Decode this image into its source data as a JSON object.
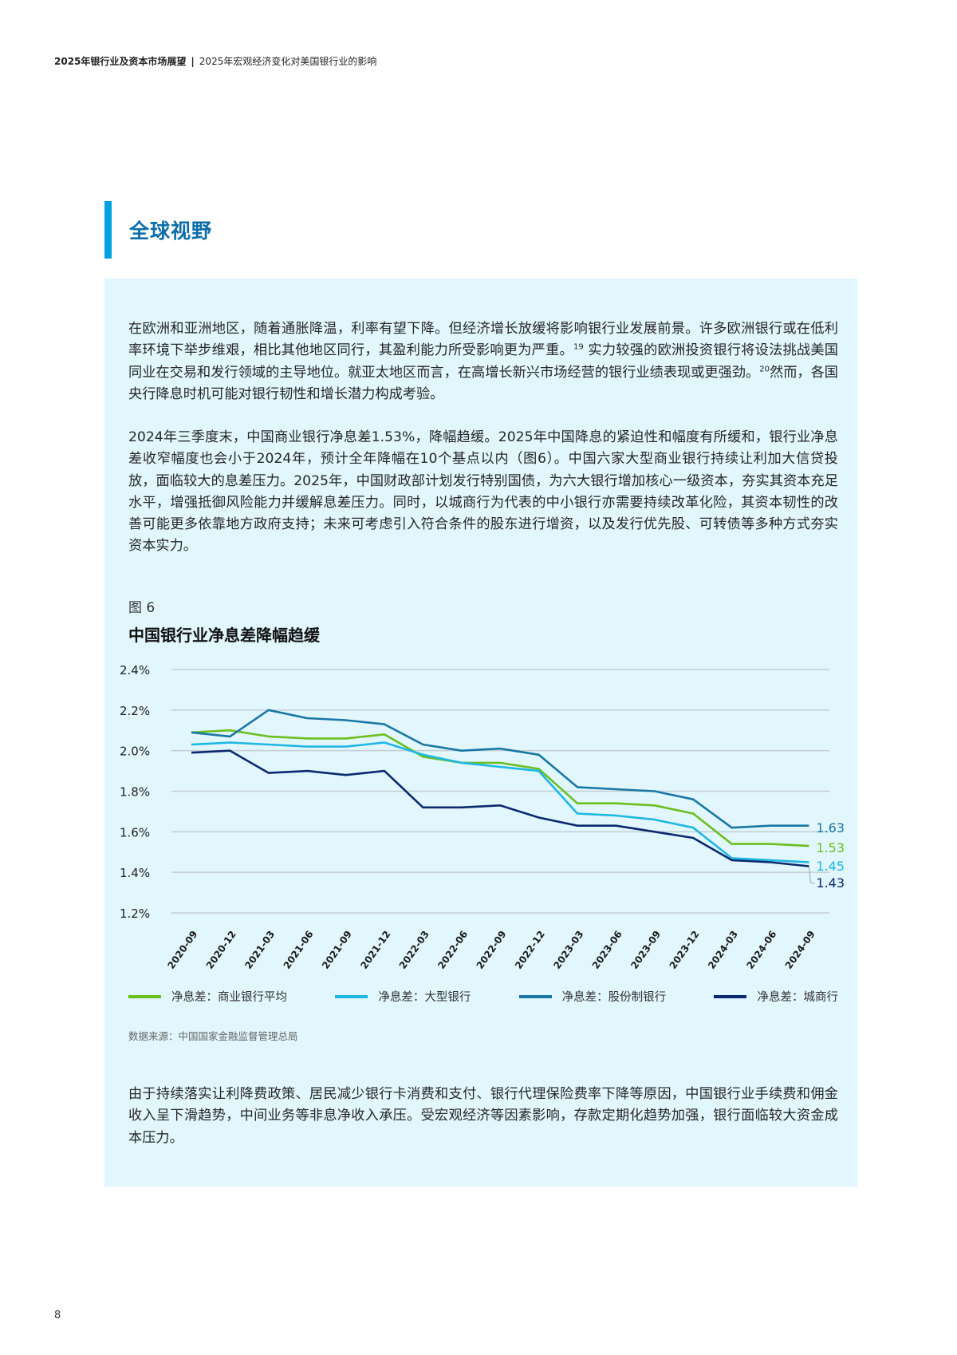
{
  "header": {
    "report_title": "2025年银行业及资本市场展望",
    "separator": "|",
    "chapter_title": "2025年宏观经济变化对美国银行业的影响"
  },
  "section": {
    "title": "全球视野",
    "accent_color": "#00a3e0",
    "title_color": "#0d6ea8"
  },
  "body": {
    "paragraph1": {
      "part1": "在欧洲和亚洲地区，随着通胀降温，利率有望下降。但经济增长放缓将影响银行业发展前景。许多欧洲银行或在低利率环境下举步维艰，相比其他地区同行，其盈利能力所受影响更为严重。",
      "footnote1": "19",
      "part2": " 实力较强的欧洲投资银行将设法挑战美国同业在交易和发行领域的主导地位。就亚太地区而言，在高增长新兴市场经营的银行业绩表现或更强劲。",
      "footnote2": "20",
      "part3": "然而，各国央行降息时机可能对银行韧性和增长潜力构成考验。"
    },
    "paragraph2": "2024年三季度末，中国商业银行净息差1.53%，降幅趋缓。2025年中国降息的紧迫性和幅度有所缓和，银行业净息差收窄幅度也会小于2024年，预计全年降幅在10个基点以内（图6）。中国六家大型商业银行持续让利加大信贷投放，面临较大的息差压力。2025年，中国财政部计划发行特别国债，为六大银行增加核心一级资本，夯实其资本充足水平，增强抵御风险能力并缓解息差压力。同时，以城商行为代表的中小银行亦需要持续改革化险，其资本韧性的改善可能更多依靠地方政府支持；未来可考虑引入符合条件的股东进行增资，以及发行优先股、可转债等多种方式夯实资本实力。",
    "paragraph3": "由于持续落实让利降费政策、居民减少银行卡消费和支付、银行代理保险费率下降等原因，中国银行业手续费和佣金收入呈下滑趋势，中间业务等非息净收入承压。受宏观经济等因素影响，存款定期化趋势加强，银行面临较大资金成本压力。"
  },
  "figure": {
    "label": "图 6",
    "title": "中国银行业净息差降幅趋缓",
    "source": "数据来源：中国国家金融监督管理总局"
  },
  "chart_data": {
    "type": "line",
    "title": "中国银行业净息差降幅趋缓",
    "xlabel": "",
    "ylabel": "",
    "ylim": [
      1.2,
      2.4
    ],
    "yticks": [
      "2.4%",
      "2.2%",
      "2.0%",
      "1.8%",
      "1.6%",
      "1.4%",
      "1.2%"
    ],
    "ytick_values": [
      2.4,
      2.2,
      2.0,
      1.8,
      1.6,
      1.4,
      1.2
    ],
    "grid": "horizontal",
    "legend_position": "bottom",
    "x": [
      "2020-09",
      "2020-12",
      "2021-03",
      "2021-06",
      "2021-09",
      "2021-12",
      "2022-03",
      "2022-06",
      "2022-09",
      "2022-12",
      "2023-03",
      "2023-06",
      "2023-09",
      "2023-12",
      "2024-03",
      "2024-06",
      "2024-09"
    ],
    "series": [
      {
        "name": "净息差：商业银行平均",
        "color": "#6cbf1f",
        "values": [
          2.09,
          2.1,
          2.07,
          2.06,
          2.06,
          2.08,
          1.97,
          1.94,
          1.94,
          1.91,
          1.74,
          1.74,
          1.73,
          1.69,
          1.54,
          1.54,
          1.53
        ],
        "end_label": "1.53"
      },
      {
        "name": "净息差：大型银行",
        "color": "#1fb7e3",
        "values": [
          2.03,
          2.04,
          2.03,
          2.02,
          2.02,
          2.04,
          1.98,
          1.94,
          1.92,
          1.9,
          1.69,
          1.68,
          1.66,
          1.62,
          1.47,
          1.46,
          1.45
        ],
        "end_label": "1.45"
      },
      {
        "name": "净息差：股份制银行",
        "color": "#1a77a3",
        "values": [
          2.09,
          2.07,
          2.2,
          2.16,
          2.15,
          2.13,
          2.03,
          2.0,
          2.01,
          1.98,
          1.82,
          1.81,
          1.8,
          1.76,
          1.62,
          1.63,
          1.63
        ],
        "end_label": "1.63"
      },
      {
        "name": "净息差：城商行",
        "color": "#0b2a6e",
        "values": [
          1.99,
          2.0,
          1.89,
          1.9,
          1.88,
          1.9,
          1.72,
          1.72,
          1.73,
          1.67,
          1.63,
          1.63,
          1.6,
          1.57,
          1.46,
          1.45,
          1.43
        ],
        "end_label": "1.43"
      }
    ]
  },
  "page": {
    "number": "8"
  }
}
